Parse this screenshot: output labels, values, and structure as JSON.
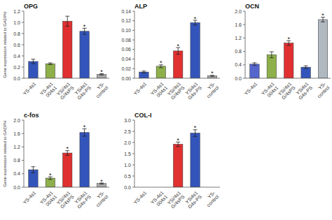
{
  "chart_data": [
    {
      "type": "bar",
      "title": "OPG",
      "ylabel": "Gene expression related to GADPH",
      "categories": [
        "YS-4s1",
        "YS-4s1\n004s1",
        "YSi/4s1\nG/4sPS",
        "YSi4s1\nG4s-PS",
        "YS-\ncontrol"
      ],
      "values": [
        0.3,
        0.26,
        1.02,
        0.84,
        0.07
      ],
      "errors": [
        0.04,
        0.015,
        0.09,
        0.055,
        0.012
      ],
      "colors": [
        "#3355bb",
        "#8db04a",
        "#e03030",
        "#3355bb",
        "#a8a8a8"
      ],
      "ylim": [
        0,
        1.2
      ],
      "yticks": [
        {
          "value": 0.0,
          "label": "0.0"
        },
        0.2,
        0.4,
        0.6,
        0.8,
        {
          "value": 1.0,
          "label": "1.0"
        },
        1.2
      ],
      "annotations": [
        {
          "text": "*",
          "x": "YSi4s1\nG4s-PS"
        },
        {
          "text": "*",
          "x": "YS-\ncontrol"
        }
      ],
      "grid": false
    },
    {
      "type": "bar",
      "title": "ALP",
      "categories": [
        "YS-4s1",
        "YS-4s1\n004s1",
        "YSi/4s1\nG/4sPS",
        "YSi4s1\nG4s-PS",
        "YS-\ncontrol"
      ],
      "values": [
        0.013,
        0.025,
        0.057,
        0.116,
        0.005
      ],
      "errors": [
        0.002,
        0.003,
        0.007,
        0.005,
        0.001
      ],
      "colors": [
        "#3355bb",
        "#8db04a",
        "#e03030",
        "#3355bb",
        "#a8a8a8"
      ],
      "ylim": [
        0,
        0.14
      ],
      "yticks": [
        {
          "value": 0.0,
          "label": "0.00"
        },
        {
          "value": 0.02,
          "label": "0.02"
        },
        {
          "value": 0.04,
          "label": "0.04"
        },
        {
          "value": 0.06,
          "label": "0.06"
        },
        {
          "value": 0.08,
          "label": "0.08"
        },
        {
          "value": 0.1,
          "label": "0.10"
        },
        {
          "value": 0.12,
          "label": "0.12"
        },
        {
          "value": 0.14,
          "label": "0.14"
        }
      ],
      "annotations": [
        {
          "text": "*",
          "x": "YS-4s1\n004s1"
        },
        {
          "text": "*",
          "x": "YSi/4s1\nG/4sPS"
        },
        {
          "text": "*",
          "x": "YSi4s1\nG4s-PS"
        },
        {
          "text": "*",
          "x": "YS-\ncontrol"
        }
      ],
      "grid": false
    },
    {
      "type": "bar",
      "title": "OCN",
      "categories": [
        "YS-4s1",
        "YS-4s1\n004s1",
        "YSi/4s1\nG/4sPS",
        "YSi4s1\nG4s-PS",
        "YS-\ncontrol"
      ],
      "values": [
        0.42,
        0.7,
        1.05,
        0.33,
        1.75
      ],
      "errors": [
        0.04,
        0.09,
        0.07,
        0.04,
        0.07
      ],
      "colors": [
        "#5566cc",
        "#8db04a",
        "#e03030",
        "#3355bb",
        "#b0b8c0"
      ],
      "ylim": [
        0,
        2.0
      ],
      "yticks": [
        {
          "value": 0.0,
          "label": "0.0"
        },
        0.4,
        0.8,
        1.2,
        1.6,
        {
          "value": 2.0,
          "label": "2.0"
        }
      ],
      "annotations": [
        {
          "text": "*",
          "x": "YSi/4s1\nG/4sPS"
        },
        {
          "text": "*",
          "x": "YS-\ncontrol"
        }
      ],
      "grid": false
    },
    {
      "type": "bar",
      "title": "c-fos",
      "ylabel": "Gene expression related to GADPH",
      "categories": [
        "YS-4s1",
        "YS-4s1\n004s1",
        "YSi/4s1\nG/4sPS",
        "YSi4s1\nG4s-PS",
        "YS-\ncontrol"
      ],
      "values": [
        0.52,
        0.27,
        1.02,
        1.63,
        0.11
      ],
      "errors": [
        0.09,
        0.04,
        0.07,
        0.11,
        0.015
      ],
      "colors": [
        "#3355bb",
        "#8db04a",
        "#e03030",
        "#3355bb",
        "#a8a8a8"
      ],
      "ylim": [
        0,
        2.0
      ],
      "yticks": [
        {
          "value": 0.0,
          "label": "0.0"
        },
        0.4,
        0.8,
        1.2,
        1.6,
        {
          "value": 2.0,
          "label": "2.0"
        }
      ],
      "annotations": [
        {
          "text": "*",
          "x": "YS-4s1\n004s1"
        },
        {
          "text": "*",
          "x": "YSi/4s1\nG/4sPS"
        },
        {
          "text": "*",
          "x": "YSi4s1\nG4s-PS"
        },
        {
          "text": "*",
          "x": "YS-\ncontrol"
        }
      ],
      "grid": false
    },
    {
      "type": "bar",
      "title": "COL-I",
      "categories": [
        "YS-4s1",
        "YS-4s1\n004s1",
        "YSi/4s1\nG/4sPS",
        "YSi4s1\nG4s-PS",
        "YS-\ncontrol"
      ],
      "values": [
        null,
        null,
        1.92,
        2.42,
        null
      ],
      "errors": [
        null,
        null,
        0.1,
        0.15,
        null
      ],
      "colors": [
        null,
        null,
        "#e03030",
        "#3355bb",
        null
      ],
      "ylim": [
        0,
        3.0
      ],
      "yticks": [
        {
          "value": 0.0,
          "label": "0.0"
        },
        0.5,
        {
          "value": 1.0,
          "label": "1.0"
        },
        1.5,
        {
          "value": 2.0,
          "label": "2.0"
        },
        2.5,
        {
          "value": 3.0,
          "label": "3.0"
        }
      ],
      "annotations": [
        {
          "text": "*",
          "x": "YSi/4s1\nG/4sPS"
        },
        {
          "text": "*",
          "x": "YSi4s1\nG4s-PS"
        }
      ],
      "grid": false
    }
  ]
}
